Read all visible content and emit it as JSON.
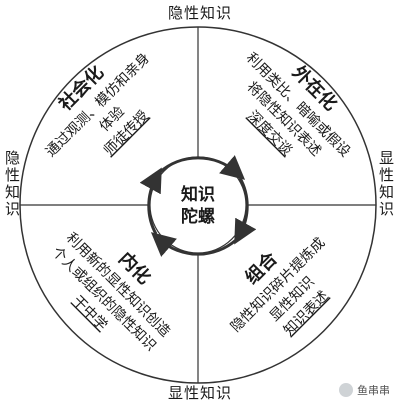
{
  "edges": {
    "top": "隐性知识",
    "bottom": "显性知识",
    "left": "隐性知识",
    "right": "显性知识"
  },
  "center": {
    "line1": "知识",
    "line2": "陀螺"
  },
  "quadrants": {
    "top_left": {
      "title": "社会化",
      "lines": [
        "通过观测、模仿和亲身",
        "体验",
        "师徒传授"
      ]
    },
    "top_right": {
      "title": "外在化",
      "lines": [
        "利用类比、暗喻或假设",
        "将隐性知识表述",
        "深度交谈"
      ]
    },
    "bottom_left": {
      "title": "内化",
      "lines": [
        "利用新的显性知识创造",
        "个人或组织的隐性知识",
        "干中学"
      ]
    },
    "bottom_right": {
      "title": "组合",
      "lines": [
        "隐性知识碎片提炼成",
        "显性知识",
        "知识表述"
      ]
    }
  },
  "badge": {
    "text": "鱼串串"
  },
  "colors": {
    "line": "#333333",
    "text": "#1a1a1a"
  }
}
